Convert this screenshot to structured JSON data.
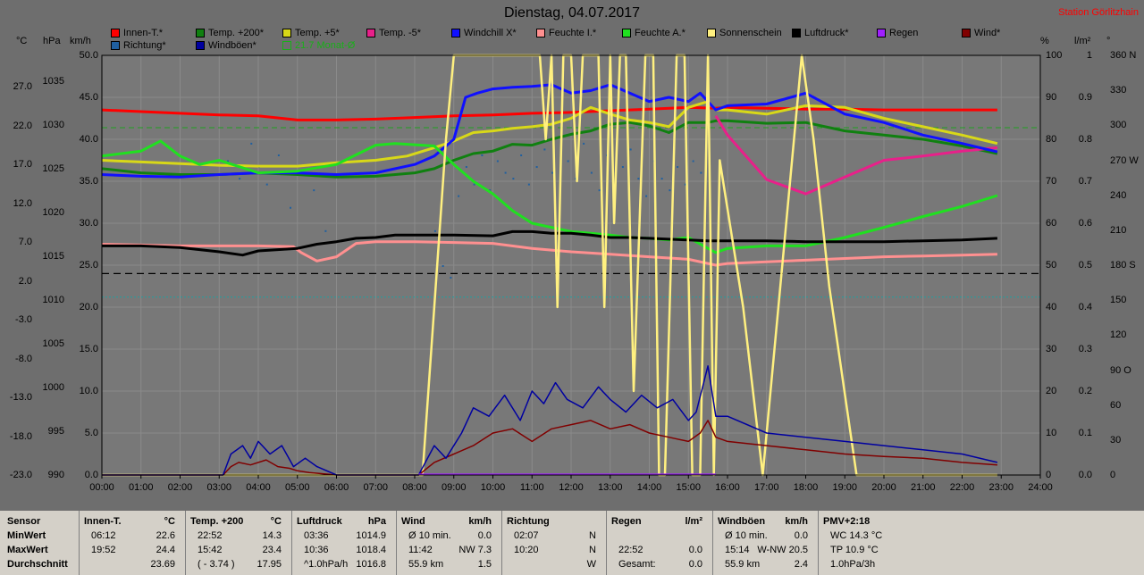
{
  "title": "Dienstag, 04.07.2017",
  "station": "Station Görlitzhain",
  "legend": [
    {
      "label": "Innen-T.*",
      "color": "#ff0000"
    },
    {
      "label": "Temp. +200*",
      "color": "#108010"
    },
    {
      "label": "Temp. +5*",
      "color": "#d8d818"
    },
    {
      "label": "Temp. -5*",
      "color": "#e8208a"
    },
    {
      "label": "Windchill X*",
      "color": "#1010ff"
    },
    {
      "label": "Feuchte I.*",
      "color": "#ff9090"
    },
    {
      "label": "Feuchte A.*",
      "color": "#20e020"
    },
    {
      "label": "Sonnenschein",
      "color": "#fff080"
    },
    {
      "label": "Luftdruck*",
      "color": "#000000"
    },
    {
      "label": "Regen",
      "color": "#a020ff"
    },
    {
      "label": "Wind*",
      "color": "#800000"
    },
    {
      "label": "Richtung*",
      "color": "#2060a0"
    },
    {
      "label": "Windböen*",
      "color": "#0000a0"
    },
    {
      "label": "21.7 Monat-Ø",
      "color": "#20a020"
    }
  ],
  "units": {
    "celsius": "°C",
    "hpa": "hPa",
    "kmh": "km/h",
    "percent": "%",
    "lm2": "l/m²",
    "deg": "°"
  },
  "axes": {
    "celsius_ticks": [
      "27.0",
      "22.0",
      "17.0",
      "12.0",
      "7.0",
      "2.0",
      "-3.0",
      "-8.0",
      "-13.0",
      "-18.0",
      "-23.0"
    ],
    "hpa_ticks": [
      "1035",
      "1030",
      "1025",
      "1020",
      "1015",
      "1010",
      "1005",
      "1000",
      "995",
      "990"
    ],
    "kmh_ticks": [
      "50.0",
      "45.0",
      "40.0",
      "35.0",
      "30.0",
      "25.0",
      "20.0",
      "15.0",
      "10.0",
      "5.0",
      "0.0"
    ],
    "percent_ticks": [
      "100",
      "90",
      "80",
      "70",
      "60",
      "50",
      "40",
      "30",
      "20",
      "10",
      "0"
    ],
    "rain_ticks": [
      "1",
      "0.9",
      "0.8",
      "0.7",
      "0.6",
      "0.5",
      "0.4",
      "0.3",
      "0.2",
      "0.1",
      "0.0"
    ],
    "dir_ticks": [
      "360 N",
      "330",
      "300",
      "270 W",
      "240",
      "210",
      "180 S",
      "150",
      "120",
      "90 O",
      "60",
      "30",
      "0"
    ],
    "time_ticks": [
      "00:00",
      "01:00",
      "02:00",
      "03:00",
      "04:00",
      "05:00",
      "06:00",
      "07:00",
      "08:00",
      "09:00",
      "10:00",
      "11:00",
      "12:00",
      "13:00",
      "14:00",
      "15:00",
      "16:00",
      "17:00",
      "18:00",
      "19:00",
      "20:00",
      "21:00",
      "22:00",
      "23:00",
      "24:00"
    ]
  },
  "chart_data": {
    "type": "line",
    "title": "Dienstag, 04.07.2017",
    "x_unit": "hours",
    "xlim": [
      0,
      24
    ],
    "ylim_kmh": [
      0,
      50
    ],
    "reference_lines": {
      "monthly_avg_celsius": 21.7,
      "dashed_black_kmh": 24.0,
      "teal_kmh": 21.2
    },
    "series": [
      {
        "name": "Innen-T.*",
        "axis": "kmh",
        "color": "#ff0000",
        "x": [
          0,
          1,
          2,
          3,
          4,
          5,
          6,
          7,
          8,
          9,
          10,
          11,
          12,
          13,
          14,
          15,
          15.7,
          16,
          17,
          18,
          19,
          20,
          21,
          22,
          22.9
        ],
        "y": [
          43.5,
          43.3,
          43.1,
          42.9,
          42.8,
          42.3,
          42.3,
          42.4,
          42.6,
          42.8,
          42.9,
          43.1,
          43.2,
          43.4,
          43.6,
          43.8,
          43.7,
          43.8,
          43.7,
          43.6,
          43.6,
          43.5,
          43.5,
          43.5,
          43.5
        ]
      },
      {
        "name": "Temp. +200*",
        "axis": "kmh",
        "color": "#108010",
        "x": [
          0,
          1,
          2,
          3,
          4,
          5,
          6,
          7,
          8,
          8.5,
          9,
          9.5,
          10,
          10.5,
          11,
          11.5,
          12,
          12.5,
          13,
          13.5,
          14,
          14.5,
          15,
          15.5,
          15.7,
          16,
          17,
          18,
          19,
          20,
          21,
          22,
          22.9
        ],
        "y": [
          36.5,
          36,
          35.8,
          35.8,
          36,
          35.8,
          35.5,
          35.6,
          36,
          36.5,
          37.5,
          38.3,
          38.6,
          39.4,
          39.3,
          40.0,
          40.6,
          41.0,
          41.8,
          42.0,
          41.6,
          40.8,
          42.0,
          42.0,
          42.2,
          42.2,
          41.9,
          42.0,
          41.0,
          40.5,
          40.0,
          39.2,
          38.3
        ]
      },
      {
        "name": "Temp. +5*",
        "axis": "kmh",
        "color": "#d8d818",
        "x": [
          0,
          1,
          2,
          3,
          4,
          5,
          6,
          7,
          7.8,
          8.5,
          9,
          9.5,
          10,
          10.5,
          11,
          11.5,
          12,
          12.5,
          13,
          13.5,
          14,
          14.5,
          15,
          15.5,
          15.7,
          16,
          17,
          18,
          19,
          20,
          21,
          22,
          22.9
        ],
        "y": [
          37.5,
          37.3,
          37.1,
          36.9,
          36.8,
          36.8,
          37.2,
          37.5,
          38.0,
          39.0,
          39.8,
          40.8,
          41.0,
          41.3,
          41.5,
          41.8,
          42.5,
          43.8,
          43.0,
          42.3,
          42.0,
          41.5,
          43.8,
          44.5,
          43.5,
          43.5,
          43.0,
          44.0,
          43.8,
          42.5,
          41.5,
          40.5,
          39.5
        ]
      },
      {
        "name": "Temp. -5*",
        "axis": "kmh",
        "color": "#e8208a",
        "x": [
          15.7,
          16,
          17,
          18,
          19,
          20,
          21,
          22,
          22.9
        ],
        "y": [
          42.8,
          40.5,
          35.2,
          33.5,
          35.5,
          37.5,
          38.0,
          38.6,
          39.0
        ]
      },
      {
        "name": "Windchill X*",
        "axis": "kmh",
        "color": "#1010ff",
        "x": [
          0,
          1,
          2,
          3,
          4,
          5,
          6,
          7,
          8,
          8.5,
          9,
          9.3,
          9.6,
          10,
          10.5,
          11,
          11.5,
          12,
          12.5,
          13,
          13.5,
          14,
          14.5,
          15,
          15.3,
          15.7,
          16,
          17,
          18,
          19,
          20,
          21,
          22,
          22.9
        ],
        "y": [
          35.8,
          35.6,
          35.5,
          35.8,
          36.0,
          36.0,
          35.8,
          36.0,
          37.0,
          38.0,
          40.0,
          45.0,
          45.5,
          46.0,
          46.2,
          46.3,
          46.5,
          45.5,
          45.8,
          46.5,
          45.5,
          44.5,
          45.0,
          44.5,
          45.5,
          43.5,
          44.0,
          44.2,
          45.5,
          43.0,
          42.0,
          40.5,
          39.5,
          38.5
        ]
      },
      {
        "name": "Feuchte I.*",
        "axis": "kmh",
        "color": "#ff9090",
        "x": [
          0,
          1,
          2,
          3,
          4,
          4.9,
          5.1,
          5.5,
          6,
          6.5,
          7,
          8,
          9,
          10,
          11,
          12,
          13,
          14,
          15,
          15.7,
          16,
          17,
          18,
          19,
          20,
          21,
          22,
          22.9
        ],
        "y": [
          27.5,
          27.4,
          27.3,
          27.3,
          27.3,
          27.2,
          26.5,
          25.5,
          26.0,
          27.6,
          27.8,
          27.8,
          27.7,
          27.6,
          27.0,
          26.6,
          26.3,
          26.0,
          25.7,
          25.0,
          25.2,
          25.4,
          25.6,
          25.8,
          26.0,
          26.1,
          26.2,
          26.3
        ]
      },
      {
        "name": "Feuchte A.*",
        "axis": "kmh",
        "color": "#20e020",
        "x": [
          0,
          1,
          1.5,
          2,
          2.5,
          3,
          4,
          5,
          6,
          7,
          7.5,
          8.5,
          9,
          9.5,
          10,
          10.5,
          11,
          11.5,
          12,
          12.5,
          13,
          13.5,
          14,
          14.5,
          15,
          15.5,
          15.7,
          16,
          17,
          18,
          19,
          20,
          21,
          22,
          22.9
        ],
        "y": [
          38.0,
          38.6,
          39.8,
          38.0,
          37.0,
          37.5,
          36.0,
          36.2,
          37.0,
          39.3,
          39.5,
          39.2,
          37.0,
          35.0,
          33.5,
          31.5,
          30.0,
          29.5,
          29.0,
          28.8,
          28.6,
          28.3,
          28.2,
          28.0,
          28.3,
          27.0,
          26.5,
          27.0,
          27.3,
          27.3,
          28.3,
          29.5,
          30.8,
          32.0,
          33.3
        ]
      },
      {
        "name": "Luftdruck*",
        "axis": "kmh",
        "color": "#000000",
        "x": [
          0,
          1,
          2,
          3,
          3.6,
          4,
          5,
          5.5,
          6,
          6.5,
          7,
          7.5,
          8,
          9,
          10,
          10.5,
          11,
          11.5,
          12,
          12.5,
          13,
          13.5,
          14,
          14.5,
          15,
          15.5,
          16,
          17,
          18,
          19,
          20,
          21,
          22,
          22.9
        ],
        "y": [
          27.3,
          27.3,
          27.1,
          26.6,
          26.2,
          26.7,
          27.0,
          27.5,
          27.8,
          28.2,
          28.3,
          28.6,
          28.6,
          28.6,
          28.5,
          29.0,
          29.0,
          28.8,
          28.8,
          28.6,
          28.3,
          28.3,
          28.2,
          28.1,
          28.0,
          27.9,
          27.9,
          27.9,
          27.8,
          27.8,
          27.8,
          27.9,
          28.0,
          28.2
        ]
      },
      {
        "name": "Sonnenschein",
        "axis": "percent",
        "color": "#fff080",
        "x": [
          0,
          8.2,
          8.5,
          8.8,
          9.0,
          9.9,
          10.1,
          10.3,
          10.7,
          11.0,
          11.2,
          11.35,
          11.5,
          11.65,
          11.8,
          12.0,
          12.15,
          12.3,
          12.5,
          12.7,
          12.85,
          13.0,
          13.1,
          13.25,
          13.4,
          13.6,
          13.9,
          14.1,
          14.25,
          14.4,
          14.55,
          14.7,
          14.9,
          15.1,
          15.3,
          15.5,
          15.65,
          15.8,
          16.4,
          16.9,
          17.4,
          17.9,
          18.2,
          18.6,
          19.3,
          19.8,
          22.9
        ],
        "y": [
          0,
          0,
          40,
          80,
          100,
          100,
          100,
          100,
          100,
          100,
          100,
          80,
          100,
          40,
          100,
          100,
          70,
          100,
          100,
          100,
          40,
          100,
          60,
          100,
          100,
          20,
          100,
          100,
          0,
          0,
          50,
          100,
          100,
          0,
          0,
          100,
          0,
          75,
          40,
          0,
          50,
          100,
          80,
          45,
          0,
          0,
          0
        ]
      },
      {
        "name": "Wind*",
        "axis": "kmh",
        "color": "#800000",
        "x": [
          0,
          3.1,
          3.3,
          3.5,
          3.8,
          4.2,
          4.5,
          4.8,
          5.0,
          5.3,
          6.0,
          8.1,
          8.5,
          9.0,
          9.5,
          10.0,
          10.5,
          11.0,
          11.5,
          12.0,
          12.5,
          13.0,
          13.5,
          14.0,
          14.5,
          15.0,
          15.3,
          15.5,
          15.7,
          16.0,
          17.0,
          18.0,
          19.0,
          20.0,
          21.0,
          22.0,
          22.9
        ],
        "y": [
          0,
          0,
          1.0,
          1.5,
          1.2,
          1.8,
          1.0,
          0.8,
          0.5,
          0.3,
          0,
          0,
          1.5,
          2.5,
          3.5,
          5.0,
          5.5,
          4.0,
          5.5,
          6.0,
          6.5,
          5.5,
          6.0,
          5.0,
          4.5,
          4.0,
          5.0,
          6.5,
          4.5,
          4.0,
          3.5,
          3.0,
          2.5,
          2.2,
          2.0,
          1.5,
          1.2
        ]
      },
      {
        "name": "Windböen*",
        "axis": "kmh",
        "color": "#0000a0",
        "x": [
          0,
          3.1,
          3.3,
          3.6,
          3.8,
          4.0,
          4.3,
          4.6,
          4.9,
          5.2,
          5.5,
          6.0,
          8.1,
          8.5,
          8.8,
          9.2,
          9.5,
          9.9,
          10.3,
          10.7,
          11.0,
          11.3,
          11.6,
          11.9,
          12.3,
          12.7,
          13.0,
          13.4,
          13.8,
          14.2,
          14.6,
          15.0,
          15.2,
          15.5,
          15.7,
          16.0,
          17.0,
          18.0,
          19.0,
          20.0,
          21.0,
          22.0,
          22.9
        ],
        "y": [
          0,
          0,
          2.5,
          3.5,
          2.0,
          4.0,
          2.5,
          3.5,
          1.0,
          2.0,
          1.0,
          0,
          0,
          3.5,
          2.0,
          5.0,
          8.0,
          7.0,
          9.5,
          6.5,
          10.0,
          8.5,
          11.0,
          9.0,
          8.0,
          10.5,
          9.0,
          7.5,
          9.5,
          8.0,
          9.0,
          6.5,
          7.5,
          13.0,
          7.0,
          7.0,
          5.0,
          4.5,
          4.0,
          3.5,
          3.0,
          2.5,
          1.5
        ]
      },
      {
        "name": "Regen",
        "axis": "kmh",
        "color": "#a020ff",
        "x": [
          8.1,
          15.7
        ],
        "y": [
          0.1,
          0.1
        ]
      }
    ],
    "richtung_scatter": {
      "color": "#2060a0",
      "x": [
        3.2,
        3.5,
        3.8,
        4.0,
        4.2,
        4.5,
        4.8,
        5.1,
        5.4,
        5.7,
        8.5,
        8.7,
        8.9,
        9.1,
        9.3,
        9.5,
        9.7,
        9.9,
        10.1,
        10.3,
        10.5,
        10.7,
        10.9,
        11.1,
        11.3,
        11.5,
        11.7,
        11.9,
        12.1,
        12.3,
        12.5,
        12.7,
        12.9,
        13.1,
        13.3,
        13.5,
        13.7,
        13.9,
        14.1,
        14.3,
        14.5,
        14.7,
        14.9,
        15.1,
        15.3,
        15.5
      ],
      "y": [
        270,
        255,
        285,
        265,
        250,
        275,
        230,
        260,
        245,
        210,
        210,
        180,
        170,
        240,
        265,
        250,
        275,
        245,
        270,
        260,
        255,
        275,
        250,
        265,
        280,
        260,
        245,
        270,
        255,
        285,
        260,
        245,
        275,
        250,
        265,
        280,
        255,
        240,
        270,
        255,
        245,
        265,
        250,
        270,
        260,
        290
      ]
    }
  },
  "table": {
    "row_labels": [
      "Sensor",
      "MinWert",
      "MaxWert",
      "Durchschnitt"
    ],
    "columns": [
      {
        "header": "Innen-T.",
        "unit": "°C",
        "rows": [
          [
            "06:12",
            "22.6"
          ],
          [
            "19:52",
            "24.4"
          ],
          [
            "",
            "23.69"
          ]
        ]
      },
      {
        "header": "Temp. +200",
        "unit": "°C",
        "rows": [
          [
            "22:52",
            "14.3"
          ],
          [
            "15:42",
            "23.4"
          ],
          [
            "( - 3.74 )",
            "17.95"
          ]
        ]
      },
      {
        "header": "Luftdruck",
        "unit": "hPa",
        "rows": [
          [
            "03:36",
            "1014.9"
          ],
          [
            "10:36",
            "1018.4"
          ],
          [
            "^1.0hPa/h",
            "1016.8"
          ]
        ]
      },
      {
        "header": "Wind",
        "unit": "km/h",
        "rows": [
          [
            "Ø 10 min.",
            "0.0"
          ],
          [
            "11:42",
            "NW 7.3"
          ],
          [
            "55.9 km",
            "1.5"
          ]
        ]
      },
      {
        "header": "Richtung",
        "unit": "",
        "rows": [
          [
            "02:07",
            "N"
          ],
          [
            "10:20",
            "N"
          ],
          [
            "",
            "W"
          ]
        ]
      },
      {
        "header": "Regen",
        "unit": "l/m²",
        "rows": [
          [
            "",
            ""
          ],
          [
            "22:52",
            "0.0"
          ],
          [
            "Gesamt:",
            "0.0"
          ]
        ]
      },
      {
        "header": "Windböen",
        "unit": "km/h",
        "rows": [
          [
            "Ø 10 min.",
            "0.0"
          ],
          [
            "15:14",
            "W-NW 20.5"
          ],
          [
            "55.9 km",
            "2.4"
          ]
        ]
      },
      {
        "header": "PMV+2:18",
        "unit": "",
        "rows": [
          [
            "WC 14.3 °C",
            ""
          ],
          [
            "TP 10.9 °C",
            ""
          ],
          [
            "1.0hPa/3h",
            ""
          ]
        ]
      }
    ]
  }
}
